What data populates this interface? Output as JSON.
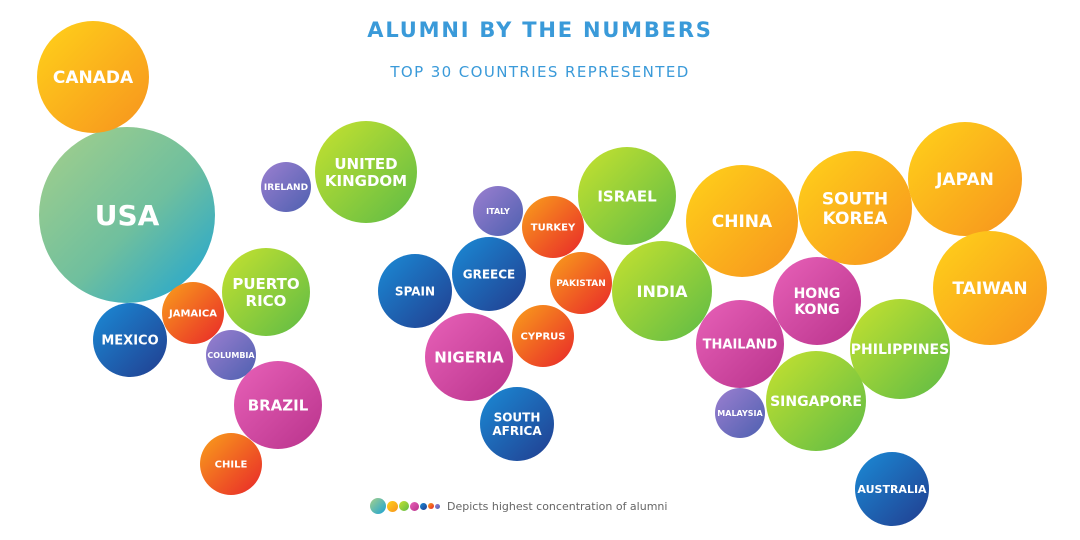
{
  "title": "ALUMNI BY THE NUMBERS",
  "subtitle": "TOP 30 COUNTRIES REPRESENTED",
  "legend": {
    "text": "Depicts highest concentration of alumni"
  },
  "colors": {
    "title": "#3a9ad9",
    "green": "#8cc63f",
    "blue": "#1e5fb4",
    "orange": "#f7941d",
    "magenta": "#d6359a",
    "purple": "#7a63b8",
    "red_orange": "#ec5528",
    "usa_teal": "#7cc29a"
  },
  "chart_data": {
    "type": "bubble",
    "title": "ALUMNI BY THE NUMBERS",
    "subtitle": "TOP 30 COUNTRIES REPRESENTED",
    "legend": "Depicts highest concentration of alumni",
    "countries": [
      {
        "name": "USA",
        "lines": [
          "USA"
        ],
        "color": "teal"
      },
      {
        "name": "CANADA",
        "lines": [
          "CANADA"
        ],
        "color": "orange"
      },
      {
        "name": "UNITED KINGDOM",
        "lines": [
          "UNITED",
          "KINGDOM"
        ],
        "color": "green"
      },
      {
        "name": "IRELAND",
        "lines": [
          "IRELAND"
        ],
        "color": "purple"
      },
      {
        "name": "PUERTO RICO",
        "lines": [
          "PUERTO",
          "RICO"
        ],
        "color": "green"
      },
      {
        "name": "JAMAICA",
        "lines": [
          "JAMAICA"
        ],
        "color": "red-orange"
      },
      {
        "name": "MEXICO",
        "lines": [
          "MEXICO"
        ],
        "color": "blue"
      },
      {
        "name": "COLUMBIA",
        "lines": [
          "COLUMBIA"
        ],
        "color": "purple"
      },
      {
        "name": "BRAZIL",
        "lines": [
          "BRAZIL"
        ],
        "color": "magenta"
      },
      {
        "name": "CHILE",
        "lines": [
          "CHILE"
        ],
        "color": "red-orange"
      },
      {
        "name": "SPAIN",
        "lines": [
          "SPAIN"
        ],
        "color": "blue"
      },
      {
        "name": "GREECE",
        "lines": [
          "GREECE"
        ],
        "color": "blue"
      },
      {
        "name": "ITALY",
        "lines": [
          "ITALY"
        ],
        "color": "purple"
      },
      {
        "name": "TURKEY",
        "lines": [
          "TURKEY"
        ],
        "color": "red-orange"
      },
      {
        "name": "ISRAEL",
        "lines": [
          "ISRAEL"
        ],
        "color": "green"
      },
      {
        "name": "PAKISTAN",
        "lines": [
          "PAKISTAN"
        ],
        "color": "red-orange"
      },
      {
        "name": "INDIA",
        "lines": [
          "INDIA"
        ],
        "color": "green"
      },
      {
        "name": "CYPRUS",
        "lines": [
          "CYPRUS"
        ],
        "color": "red-orange"
      },
      {
        "name": "NIGERIA",
        "lines": [
          "NIGERIA"
        ],
        "color": "magenta"
      },
      {
        "name": "SOUTH AFRICA",
        "lines": [
          "SOUTH",
          "AFRICA"
        ],
        "color": "blue"
      },
      {
        "name": "CHINA",
        "lines": [
          "CHINA"
        ],
        "color": "orange"
      },
      {
        "name": "SOUTH KOREA",
        "lines": [
          "SOUTH",
          "KOREA"
        ],
        "color": "orange"
      },
      {
        "name": "JAPAN",
        "lines": [
          "JAPAN"
        ],
        "color": "orange"
      },
      {
        "name": "TAIWAN",
        "lines": [
          "TAIWAN"
        ],
        "color": "orange"
      },
      {
        "name": "HONG KONG",
        "lines": [
          "HONG",
          "KONG"
        ],
        "color": "magenta"
      },
      {
        "name": "THAILAND",
        "lines": [
          "THAILAND"
        ],
        "color": "magenta"
      },
      {
        "name": "PHILIPPINES",
        "lines": [
          "PHILIPPINES"
        ],
        "color": "green"
      },
      {
        "name": "SINGAPORE",
        "lines": [
          "SINGAPORE"
        ],
        "color": "green"
      },
      {
        "name": "MALAYSIA",
        "lines": [
          "MALAYSIA"
        ],
        "color": "purple"
      },
      {
        "name": "AUSTRALIA",
        "lines": [
          "AUSTRALIA"
        ],
        "color": "blue"
      }
    ]
  }
}
